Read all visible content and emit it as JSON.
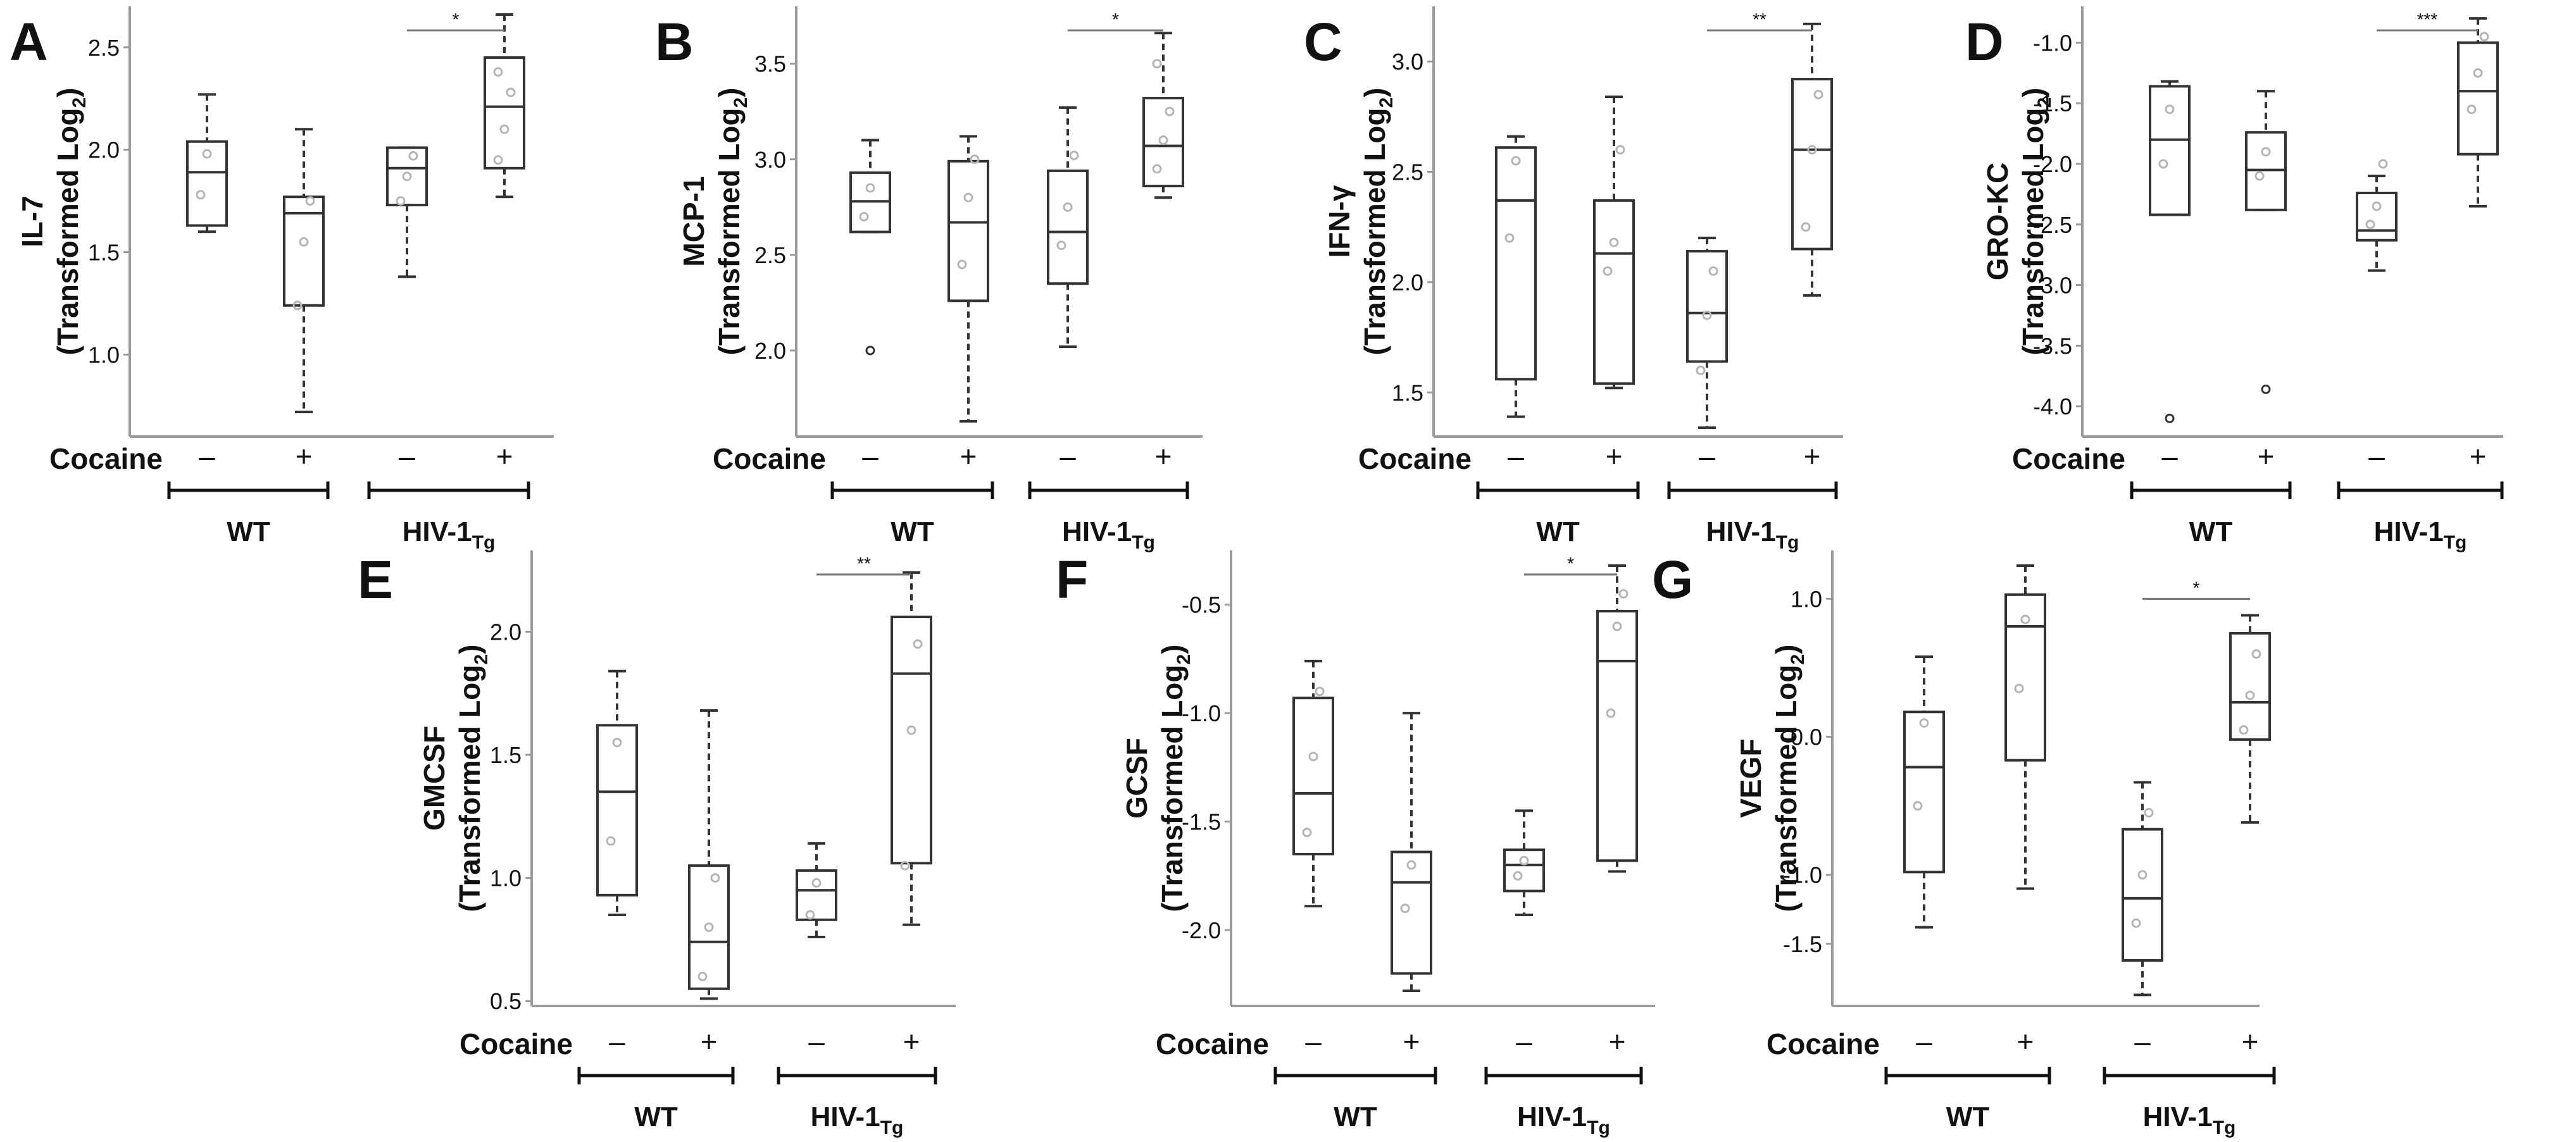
{
  "figure": {
    "cocaine_label": "Cocaine",
    "minus": "–",
    "plus": "+",
    "group_wt": "WT",
    "group_tg_main": "HIV-1",
    "group_tg_sub": "Tg",
    "ylabel_suffix": "(Transformed Log",
    "ylabel_sub": "2",
    "ylabel_close": ")"
  },
  "chart_data": [
    {
      "panel": "A",
      "type": "box",
      "ylabel": "IL-7",
      "ylim": [
        0.6,
        2.7
      ],
      "yticks": [
        1.0,
        1.5,
        2.0,
        2.5
      ],
      "yticklabels": [
        "1.0",
        "1.5",
        "2.0",
        "2.5"
      ],
      "significance": {
        "between": "HIV-1Tg cocaine - vs +",
        "label": "*"
      },
      "boxes": [
        {
          "group": "WT",
          "cocaine": "-",
          "whisker_low": 1.6,
          "q1": 1.63,
          "median": 1.89,
          "q3": 2.04,
          "whisker_high": 2.27,
          "points": [
            1.78,
            1.98
          ],
          "outliers": []
        },
        {
          "group": "WT",
          "cocaine": "+",
          "whisker_low": 0.72,
          "q1": 1.24,
          "median": 1.69,
          "q3": 1.77,
          "whisker_high": 2.1,
          "points": [
            1.24,
            1.55,
            1.75
          ],
          "outliers": []
        },
        {
          "group": "HIV-1Tg",
          "cocaine": "-",
          "whisker_low": 1.38,
          "q1": 1.73,
          "median": 1.91,
          "q3": 2.01,
          "whisker_high": 2.01,
          "points": [
            1.75,
            1.87,
            1.97
          ],
          "outliers": []
        },
        {
          "group": "HIV-1Tg",
          "cocaine": "+",
          "whisker_low": 1.77,
          "q1": 1.91,
          "median": 2.21,
          "q3": 2.45,
          "whisker_high": 2.66,
          "points": [
            1.95,
            2.1,
            2.28,
            2.38
          ],
          "outliers": []
        }
      ]
    },
    {
      "panel": "B",
      "type": "box",
      "ylabel": "MCP-1",
      "ylim": [
        1.55,
        3.8
      ],
      "yticks": [
        2.0,
        2.5,
        3.0,
        3.5
      ],
      "yticklabels": [
        "2.0",
        "2.5",
        "3.0",
        "3.5"
      ],
      "significance": {
        "between": "HIV-1Tg cocaine - vs +",
        "label": "*"
      },
      "boxes": [
        {
          "group": "WT",
          "cocaine": "-",
          "whisker_low": 2.62,
          "q1": 2.62,
          "median": 2.78,
          "q3": 2.93,
          "whisker_high": 3.1,
          "points": [
            2.7,
            2.85
          ],
          "outliers": [
            2.0
          ]
        },
        {
          "group": "WT",
          "cocaine": "+",
          "whisker_low": 1.63,
          "q1": 2.26,
          "median": 2.67,
          "q3": 2.99,
          "whisker_high": 3.12,
          "points": [
            2.45,
            2.8,
            3.0
          ],
          "outliers": []
        },
        {
          "group": "HIV-1Tg",
          "cocaine": "-",
          "whisker_low": 2.02,
          "q1": 2.35,
          "median": 2.62,
          "q3": 2.94,
          "whisker_high": 3.27,
          "points": [
            2.55,
            2.75,
            3.02
          ],
          "outliers": []
        },
        {
          "group": "HIV-1Tg",
          "cocaine": "+",
          "whisker_low": 2.8,
          "q1": 2.86,
          "median": 3.07,
          "q3": 3.32,
          "whisker_high": 3.66,
          "points": [
            2.95,
            3.1,
            3.25,
            3.5
          ],
          "outliers": []
        }
      ]
    },
    {
      "panel": "C",
      "type": "box",
      "ylabel": "IFN-γ",
      "ylim": [
        1.3,
        3.25
      ],
      "yticks": [
        1.5,
        2.0,
        2.5,
        3.0
      ],
      "yticklabels": [
        "1.5",
        "2.0",
        "2.5",
        "3.0"
      ],
      "significance": {
        "between": "HIV-1Tg cocaine - vs +",
        "label": "**"
      },
      "boxes": [
        {
          "group": "WT",
          "cocaine": "-",
          "whisker_low": 1.39,
          "q1": 1.56,
          "median": 2.37,
          "q3": 2.61,
          "whisker_high": 2.66,
          "points": [
            2.2,
            2.55
          ],
          "outliers": []
        },
        {
          "group": "WT",
          "cocaine": "+",
          "whisker_low": 1.52,
          "q1": 1.54,
          "median": 2.13,
          "q3": 2.37,
          "whisker_high": 2.84,
          "points": [
            2.05,
            2.18,
            2.6
          ],
          "outliers": []
        },
        {
          "group": "HIV-1Tg",
          "cocaine": "-",
          "whisker_low": 1.34,
          "q1": 1.64,
          "median": 1.86,
          "q3": 2.14,
          "whisker_high": 2.2,
          "points": [
            1.6,
            1.85,
            2.05
          ],
          "outliers": []
        },
        {
          "group": "HIV-1Tg",
          "cocaine": "+",
          "whisker_low": 1.94,
          "q1": 2.15,
          "median": 2.6,
          "q3": 2.92,
          "whisker_high": 3.17,
          "points": [
            2.25,
            2.6,
            2.85
          ],
          "outliers": []
        }
      ]
    },
    {
      "panel": "D",
      "type": "box",
      "ylabel": "GRO-KC",
      "ylim": [
        -4.25,
        -0.7
      ],
      "yticks": [
        -4.0,
        -3.5,
        -3.0,
        -2.5,
        -2.0,
        -1.5,
        -1.0
      ],
      "yticklabels": [
        "-4.0",
        "-3.5",
        "-3.0",
        "-2.5",
        "-2.0",
        "-1.5",
        "-1.0"
      ],
      "significance": {
        "between": "HIV-1Tg cocaine - vs +",
        "label": "***"
      },
      "boxes": [
        {
          "group": "WT",
          "cocaine": "-",
          "whisker_low": -2.42,
          "q1": -2.42,
          "median": -1.8,
          "q3": -1.36,
          "whisker_high": -1.32,
          "points": [
            -2.0,
            -1.55
          ],
          "outliers": [
            -4.1
          ]
        },
        {
          "group": "WT",
          "cocaine": "+",
          "whisker_low": -2.38,
          "q1": -2.38,
          "median": -2.05,
          "q3": -1.74,
          "whisker_high": -1.4,
          "points": [
            -2.1,
            -1.9
          ],
          "outliers": [
            -3.86
          ]
        },
        {
          "group": "HIV-1Tg",
          "cocaine": "-",
          "whisker_low": -2.88,
          "q1": -2.63,
          "median": -2.55,
          "q3": -2.24,
          "whisker_high": -2.1,
          "points": [
            -2.5,
            -2.35,
            -2.0
          ],
          "outliers": []
        },
        {
          "group": "HIV-1Tg",
          "cocaine": "+",
          "whisker_low": -2.35,
          "q1": -1.92,
          "median": -1.4,
          "q3": -1.0,
          "whisker_high": -0.8,
          "points": [
            -1.55,
            -1.25,
            -0.95
          ],
          "outliers": []
        }
      ]
    },
    {
      "panel": "E",
      "type": "box",
      "ylabel": "GMCSF",
      "ylim": [
        0.48,
        2.33
      ],
      "yticks": [
        0.5,
        1.0,
        1.5,
        2.0
      ],
      "yticklabels": [
        "0.5",
        "1.0",
        "1.5",
        "2.0"
      ],
      "significance": {
        "between": "HIV-1Tg cocaine - vs +",
        "label": "**"
      },
      "boxes": [
        {
          "group": "WT",
          "cocaine": "-",
          "whisker_low": 0.85,
          "q1": 0.93,
          "median": 1.35,
          "q3": 1.62,
          "whisker_high": 1.84,
          "points": [
            1.15,
            1.55
          ],
          "outliers": []
        },
        {
          "group": "WT",
          "cocaine": "+",
          "whisker_low": 0.51,
          "q1": 0.55,
          "median": 0.74,
          "q3": 1.05,
          "whisker_high": 1.68,
          "points": [
            0.6,
            0.8,
            1.0
          ],
          "outliers": []
        },
        {
          "group": "HIV-1Tg",
          "cocaine": "-",
          "whisker_low": 0.76,
          "q1": 0.83,
          "median": 0.95,
          "q3": 1.03,
          "whisker_high": 1.14,
          "points": [
            0.85,
            0.98
          ],
          "outliers": []
        },
        {
          "group": "HIV-1Tg",
          "cocaine": "+",
          "whisker_low": 0.81,
          "q1": 1.06,
          "median": 1.83,
          "q3": 2.06,
          "whisker_high": 2.24,
          "points": [
            1.05,
            1.6,
            1.95
          ],
          "outliers": []
        }
      ]
    },
    {
      "panel": "F",
      "type": "box",
      "ylabel": "GCSF",
      "ylim": [
        -2.35,
        -0.25
      ],
      "yticks": [
        -2.0,
        -1.5,
        -1.0,
        -0.5
      ],
      "yticklabels": [
        "-2.0",
        "-1.5",
        "-1.0",
        "-0.5"
      ],
      "significance": {
        "between": "HIV-1Tg cocaine - vs +",
        "label": "*"
      },
      "boxes": [
        {
          "group": "WT",
          "cocaine": "-",
          "whisker_low": -1.89,
          "q1": -1.65,
          "median": -1.37,
          "q3": -0.93,
          "whisker_high": -0.76,
          "points": [
            -1.55,
            -1.2,
            -0.9
          ],
          "outliers": []
        },
        {
          "group": "WT",
          "cocaine": "+",
          "whisker_low": -2.28,
          "q1": -2.2,
          "median": -1.78,
          "q3": -1.64,
          "whisker_high": -1.0,
          "points": [
            -1.9,
            -1.7
          ],
          "outliers": []
        },
        {
          "group": "HIV-1Tg",
          "cocaine": "-",
          "whisker_low": -1.93,
          "q1": -1.82,
          "median": -1.7,
          "q3": -1.63,
          "whisker_high": -1.45,
          "points": [
            -1.75,
            -1.68
          ],
          "outliers": []
        },
        {
          "group": "HIV-1Tg",
          "cocaine": "+",
          "whisker_low": -1.73,
          "q1": -1.68,
          "median": -0.76,
          "q3": -0.53,
          "whisker_high": -0.32,
          "points": [
            -1.0,
            -0.6,
            -0.45
          ],
          "outliers": []
        }
      ]
    },
    {
      "panel": "G",
      "type": "box",
      "ylabel": "VEGF",
      "ylim": [
        -1.95,
        1.35
      ],
      "yticks": [
        -1.5,
        -1.0,
        0.0,
        1.0
      ],
      "yticklabels": [
        "-1.5",
        "-1.0",
        "0.0",
        "1.0"
      ],
      "significance": {
        "between": "HIV-1Tg cocaine - vs +",
        "label": "*"
      },
      "boxes": [
        {
          "group": "WT",
          "cocaine": "-",
          "whisker_low": -1.38,
          "q1": -0.98,
          "median": -0.22,
          "q3": 0.18,
          "whisker_high": 0.58,
          "points": [
            -0.5,
            0.1
          ],
          "outliers": []
        },
        {
          "group": "WT",
          "cocaine": "+",
          "whisker_low": -1.1,
          "q1": -0.17,
          "median": 0.8,
          "q3": 1.03,
          "whisker_high": 1.24,
          "points": [
            0.35,
            0.85
          ],
          "outliers": []
        },
        {
          "group": "HIV-1Tg",
          "cocaine": "-",
          "whisker_low": -1.87,
          "q1": -1.62,
          "median": -1.17,
          "q3": -0.67,
          "whisker_high": -0.33,
          "points": [
            -1.35,
            -1.0,
            -0.55
          ],
          "outliers": []
        },
        {
          "group": "HIV-1Tg",
          "cocaine": "+",
          "whisker_low": -0.62,
          "q1": -0.02,
          "median": 0.25,
          "q3": 0.75,
          "whisker_high": 0.88,
          "points": [
            0.05,
            0.3,
            0.6
          ],
          "outliers": []
        }
      ]
    }
  ]
}
